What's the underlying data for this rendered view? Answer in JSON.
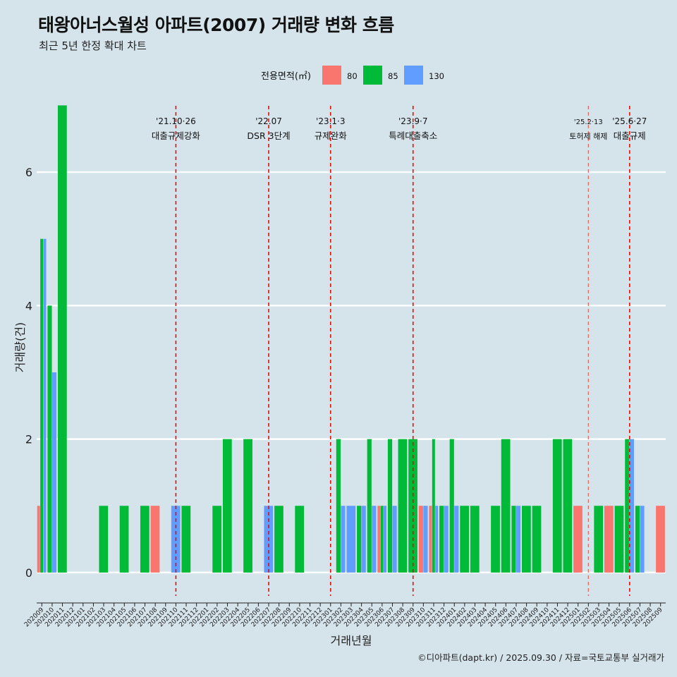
{
  "chart_data": {
    "type": "bar",
    "title": "태왕아너스월성 아파트(2007) 거래량 변화 흐름",
    "subtitle": "최근 5년 한정 확대 차트",
    "xlabel": "거래년월",
    "ylabel": "거래량(건)",
    "caption": "©디아파트(dapt.kr) / 2025.09.30 / 자료=국토교통부 실거래가",
    "legend": {
      "title": "전용면적(㎡)",
      "position": "top",
      "entries": [
        {
          "name": "80",
          "color": "#f8766d"
        },
        {
          "name": "85",
          "color": "#00ba38"
        },
        {
          "name": "130",
          "color": "#619cff"
        }
      ]
    },
    "ylim": [
      -0.35,
      7.1
    ],
    "yticks": [
      0,
      2,
      4,
      6
    ],
    "xlim": [
      0,
      61
    ],
    "categories": [
      "202009",
      "202010",
      "202011",
      "202012",
      "202101",
      "202102",
      "202103",
      "202104",
      "202105",
      "202106",
      "202107",
      "202108",
      "202109",
      "202110",
      "202111",
      "202112",
      "202201",
      "202202",
      "202203",
      "202204",
      "202205",
      "202206",
      "202207",
      "202208",
      "202209",
      "202210",
      "202211",
      "202212",
      "202301",
      "202302",
      "202303",
      "202304",
      "202305",
      "202306",
      "202307",
      "202308",
      "202309",
      "202310",
      "202311",
      "202312",
      "202401",
      "202402",
      "202403",
      "202404",
      "202405",
      "202406",
      "202407",
      "202408",
      "202409",
      "202410",
      "202411",
      "202412",
      "202501",
      "202502",
      "202503",
      "202504",
      "202505",
      "202506",
      "202507",
      "202508",
      "202509"
    ],
    "series": [
      {
        "name": "80",
        "values": [
          1,
          0,
          0,
          0,
          0,
          0,
          0,
          0,
          0,
          0,
          0,
          1,
          0,
          0,
          0,
          0,
          0,
          0,
          0,
          0,
          0,
          0,
          0,
          0,
          0,
          0,
          0,
          0,
          0,
          0,
          0,
          0,
          0,
          1,
          0,
          0,
          0,
          1,
          1,
          0,
          0,
          0,
          0,
          0,
          0,
          0,
          0,
          0,
          0,
          0,
          0,
          0,
          1,
          0,
          0,
          1,
          0,
          0,
          0,
          0,
          1
        ]
      },
      {
        "name": "85",
        "values": [
          5,
          4,
          7,
          0,
          0,
          0,
          1,
          0,
          1,
          0,
          1,
          0,
          0,
          0,
          1,
          0,
          0,
          1,
          2,
          0,
          2,
          0,
          0,
          1,
          0,
          1,
          0,
          0,
          0,
          2,
          0,
          1,
          2,
          1,
          2,
          2,
          2,
          0,
          2,
          1,
          2,
          1,
          1,
          0,
          1,
          2,
          1,
          1,
          1,
          0,
          2,
          2,
          0,
          0,
          1,
          0,
          1,
          2,
          1,
          0,
          0
        ]
      },
      {
        "name": "130",
        "values": [
          5,
          3,
          0,
          0,
          0,
          0,
          0,
          0,
          0,
          0,
          0,
          0,
          0,
          1,
          0,
          0,
          0,
          0,
          0,
          0,
          0,
          0,
          1,
          0,
          0,
          0,
          0,
          0,
          0,
          1,
          1,
          1,
          1,
          1,
          1,
          0,
          0,
          1,
          1,
          1,
          1,
          0,
          0,
          0,
          0,
          0,
          1,
          0,
          0,
          0,
          0,
          0,
          0,
          0,
          0,
          0,
          0,
          2,
          1,
          0,
          0
        ]
      }
    ],
    "events": [
      {
        "date": "'21.10·26",
        "label": "대출규제강화",
        "x": 13.5,
        "style": "dashed"
      },
      {
        "date": "'22.07",
        "label": "DSR 3단계",
        "x": 22.5,
        "style": "dashed"
      },
      {
        "date": "'23.1·3",
        "label": "규제완화",
        "x": 28.5,
        "style": "dashed"
      },
      {
        "date": "'23.9·7",
        "label": "특례대출축소",
        "x": 36.5,
        "style": "dashed"
      },
      {
        "date": "'25.2·13",
        "label": "토허제 해제",
        "x": 53.5,
        "style": "light"
      },
      {
        "date": "'25.6·27",
        "label": "대출규제",
        "x": 57.5,
        "style": "dashed"
      }
    ]
  }
}
